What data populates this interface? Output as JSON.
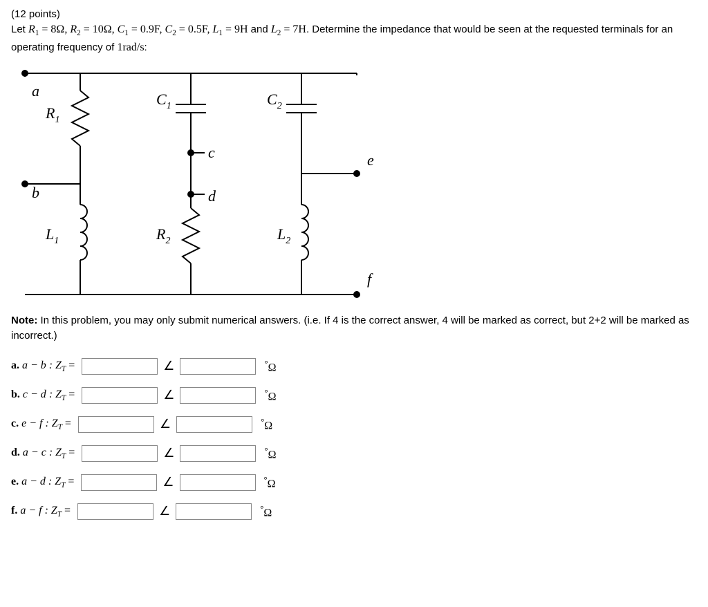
{
  "points": "(12 points)",
  "problem_prefix": "Let ",
  "params": {
    "R1": "R",
    "R1_sub": "1",
    "R1_val": " = 8Ω, ",
    "R2": "R",
    "R2_sub": "2",
    "R2_val": " = 10Ω, ",
    "C1": "C",
    "C1_sub": "1",
    "C1_val": " = 0.9F, ",
    "C2": "C",
    "C2_sub": "2",
    "C2_val": " = 0.5F, ",
    "L1": "L",
    "L1_sub": "1",
    "L1_val": " = 9H",
    "and": " and ",
    "L2": "L",
    "L2_sub": "2",
    "L2_val": " = 7H"
  },
  "problem_suffix": ". Determine the impedance that would be seen at the requested terminals for an operating frequency of ",
  "freq": "1rad/s",
  "problem_end": ":",
  "note_label": "Note:",
  "note_text": " In this problem, you may only submit numerical answers. (i.e. If 4 is the correct answer, 4 will be marked as correct, but 2+2 will be marked as incorrect.)",
  "angle_symbol": "∠",
  "unit_deg": "°",
  "unit_ohm": "Ω",
  "circuit": {
    "labels": {
      "a": "a",
      "b": "b",
      "c": "c",
      "d": "d",
      "e": "e",
      "f": "f",
      "R1": "R",
      "R1_sub": "1",
      "R2": "R",
      "R2_sub": "2",
      "C1": "C",
      "C1_sub": "1",
      "C2": "C",
      "C2_sub": "2",
      "L1": "L",
      "L1_sub": "1",
      "L2": "L",
      "L2_sub": "2"
    },
    "stroke_color": "#000000",
    "stroke_width": 2,
    "node_radius": 5,
    "font_family": "Times New Roman",
    "font_size_label": 22,
    "font_size_sub": 14
  },
  "answers": [
    {
      "letter": "a.",
      "pair": "a − b",
      "zt": " : Z",
      "zt_sub": "T",
      "eq": " ="
    },
    {
      "letter": "b.",
      "pair": "c − d",
      "zt": " : Z",
      "zt_sub": "T",
      "eq": " ="
    },
    {
      "letter": "c.",
      "pair": "e − f",
      "zt": " : Z",
      "zt_sub": "T",
      "eq": " ="
    },
    {
      "letter": "d.",
      "pair": "a − c",
      "zt": " : Z",
      "zt_sub": "T",
      "eq": " ="
    },
    {
      "letter": "e.",
      "pair": "a − d",
      "zt": " : Z",
      "zt_sub": "T",
      "eq": " ="
    },
    {
      "letter": "f.",
      "pair": "a − f",
      "zt": " : Z",
      "zt_sub": "T",
      "eq": " ="
    }
  ]
}
